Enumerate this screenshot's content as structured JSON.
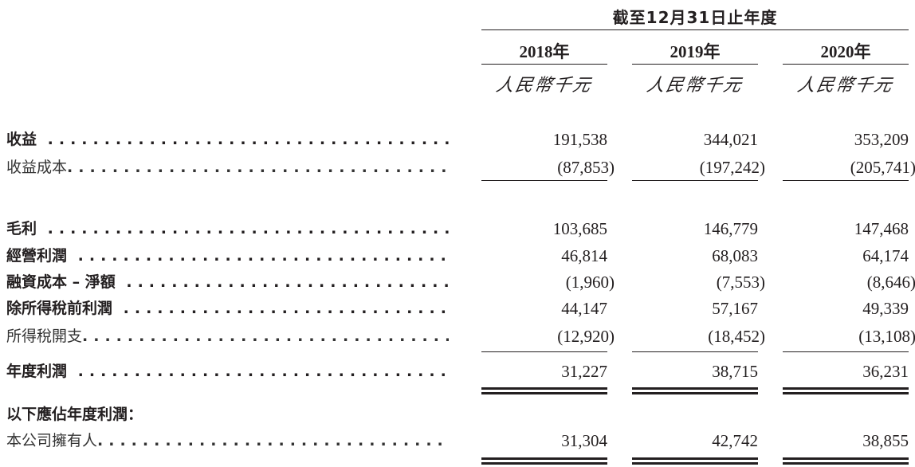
{
  "header": {
    "period_title": "截至12月31日止年度",
    "columns": [
      {
        "year": "2018年",
        "unit": "人民幣千元"
      },
      {
        "year": "2019年",
        "unit": "人民幣千元"
      },
      {
        "year": "2020年",
        "unit": "人民幣千元"
      }
    ]
  },
  "rows": [
    {
      "label": "收益",
      "bold": true,
      "values": [
        "191,538",
        "344,021",
        "353,209"
      ]
    },
    {
      "label": "收益成本",
      "bold": false,
      "values": [
        "(87,853)",
        "(197,242)",
        "(205,741)"
      ]
    },
    {
      "label": "毛利",
      "bold": true,
      "values": [
        "103,685",
        "146,779",
        "147,468"
      ]
    },
    {
      "label": "經營利潤",
      "bold": true,
      "values": [
        "46,814",
        "68,083",
        "64,174"
      ]
    },
    {
      "label": "融資成本 – 淨額",
      "bold": true,
      "values": [
        "(1,960)",
        "(7,553)",
        "(8,646)"
      ]
    },
    {
      "label": "除所得稅前利潤",
      "bold": true,
      "values": [
        "44,147",
        "57,167",
        "49,339"
      ]
    },
    {
      "label": "所得稅開支",
      "bold": false,
      "values": [
        "(12,920)",
        "(18,452)",
        "(13,108)"
      ]
    },
    {
      "label": "年度利潤",
      "bold": true,
      "values": [
        "31,227",
        "38,715",
        "36,231"
      ]
    },
    {
      "label": "以下應佔年度利潤：",
      "bold": true,
      "values": []
    },
    {
      "label": "本公司擁有人",
      "bold": false,
      "values": [
        "31,304",
        "42,742",
        "38,855"
      ]
    }
  ]
}
